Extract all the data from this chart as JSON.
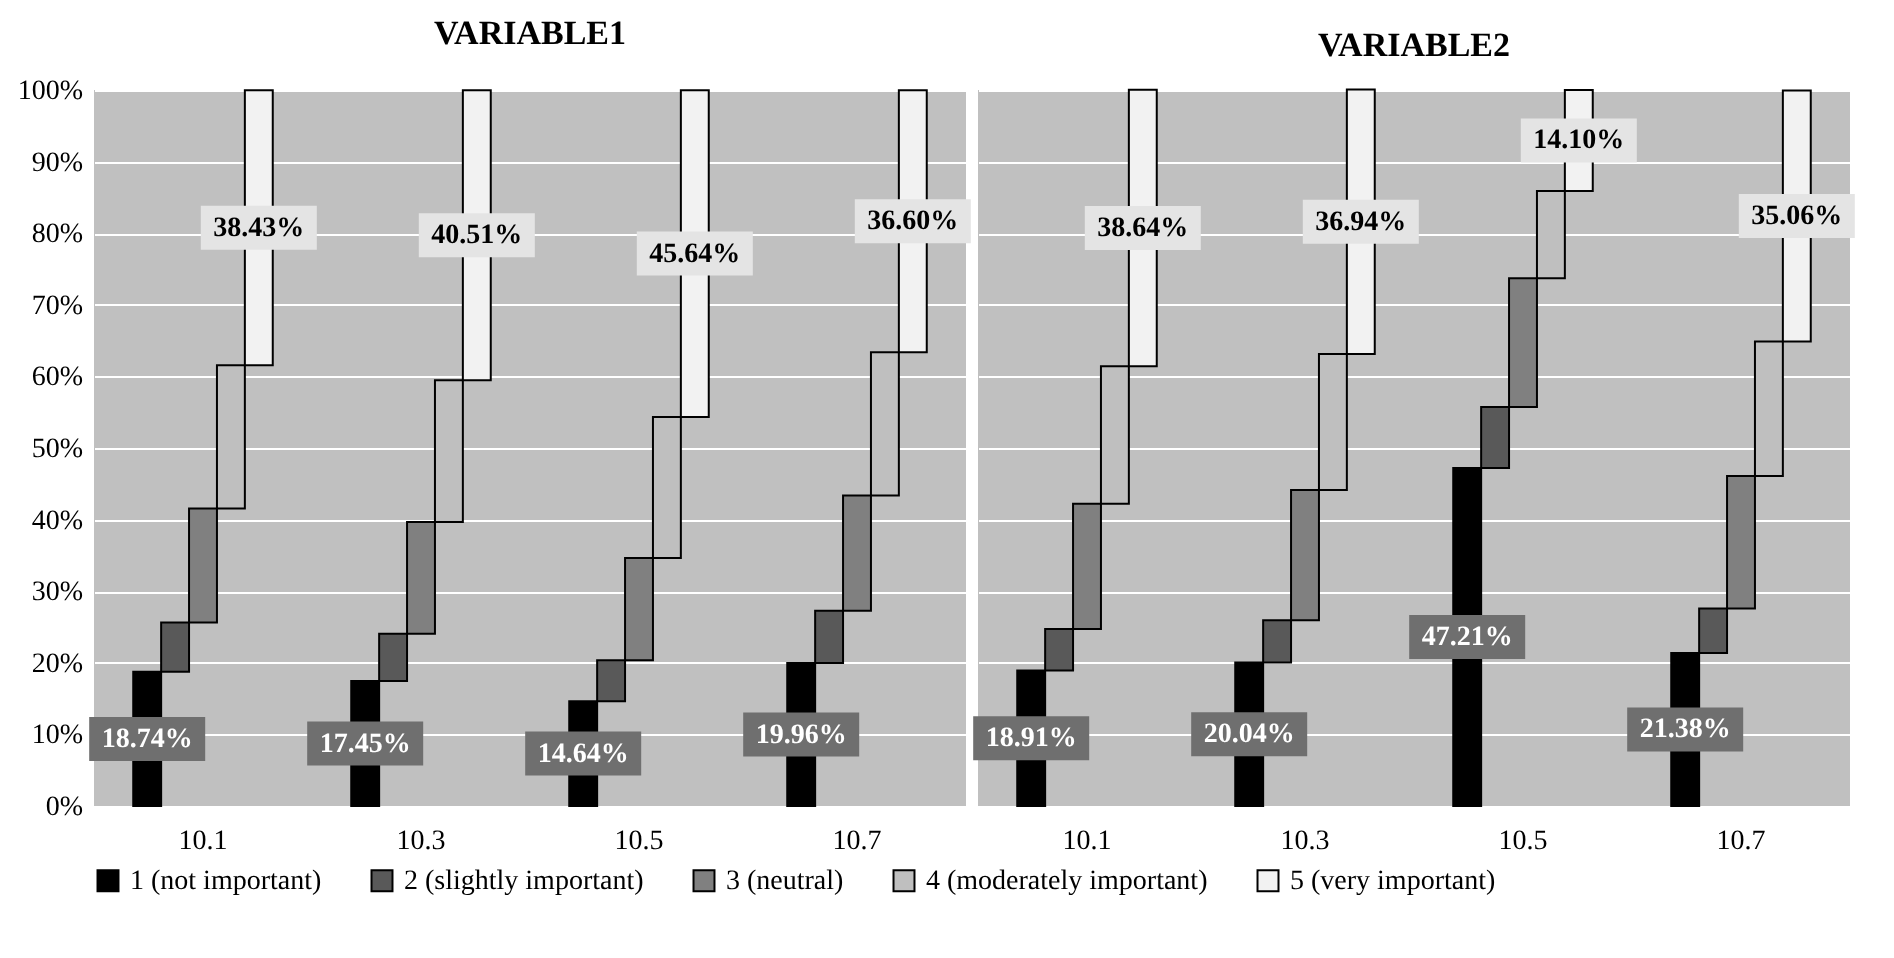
{
  "chart_data": [
    {
      "type": "bar",
      "title": "VARIABLE1",
      "stacked": true,
      "categories": [
        "10.1",
        "10.3",
        "10.5",
        "10.7"
      ],
      "series": [
        {
          "name": "1 (not important)",
          "color": "#000000",
          "values": [
            18.74,
            17.45,
            14.64,
            19.96
          ],
          "value_labels": [
            "18.74%",
            "17.45%",
            "14.64%",
            "19.96%"
          ]
        },
        {
          "name": "2 (slightly important)",
          "color": "#595959",
          "values": [
            6.9,
            6.6,
            5.7,
            7.3
          ]
        },
        {
          "name": "3 (neutral)",
          "color": "#808080",
          "values": [
            15.9,
            15.6,
            14.3,
            16.1
          ]
        },
        {
          "name": "4 (moderately important)",
          "color": "#bfbfbf",
          "values": [
            20.0,
            19.8,
            19.7,
            20.0
          ]
        },
        {
          "name": "5 (very important)",
          "color": "#f2f2f2",
          "values": [
            38.43,
            40.51,
            45.64,
            36.6
          ],
          "value_labels": [
            "38.43%",
            "40.51%",
            "45.64%",
            "36.60%"
          ]
        }
      ],
      "ylim": [
        0,
        100
      ],
      "yticks": [
        {
          "value": 0,
          "label": "0%"
        },
        {
          "value": 10,
          "label": "10%"
        },
        {
          "value": 20,
          "label": "20%"
        },
        {
          "value": 30,
          "label": "30%"
        },
        {
          "value": 40,
          "label": "40%"
        },
        {
          "value": 50,
          "label": "50%"
        },
        {
          "value": 60,
          "label": "60%"
        },
        {
          "value": 70,
          "label": "70%"
        },
        {
          "value": 80,
          "label": "80%"
        },
        {
          "value": 90,
          "label": "90%"
        },
        {
          "value": 100,
          "label": "100%"
        }
      ],
      "grid": "y",
      "legend": "bottom"
    },
    {
      "type": "bar",
      "title": "VARIABLE2",
      "stacked": true,
      "categories": [
        "10.1",
        "10.3",
        "10.5",
        "10.7"
      ],
      "series": [
        {
          "name": "1 (not important)",
          "color": "#000000",
          "values": [
            18.91,
            20.04,
            47.21,
            21.38
          ],
          "value_labels": [
            "18.91%",
            "20.04%",
            "47.21%",
            "21.38%"
          ]
        },
        {
          "name": "2 (slightly important)",
          "color": "#595959",
          "values": [
            5.8,
            5.9,
            8.5,
            6.2
          ]
        },
        {
          "name": "3 (neutral)",
          "color": "#808080",
          "values": [
            17.5,
            18.2,
            18.0,
            18.5
          ]
        },
        {
          "name": "4 (moderately important)",
          "color": "#bfbfbf",
          "values": [
            19.2,
            19.0,
            12.2,
            18.8
          ]
        },
        {
          "name": "5 (very important)",
          "color": "#f2f2f2",
          "values": [
            38.64,
            36.94,
            14.1,
            35.06
          ],
          "value_labels": [
            "38.64%",
            "36.94%",
            "14.10%",
            "35.06%"
          ]
        }
      ],
      "ylim": [
        0,
        100
      ],
      "yticks": [
        0,
        10,
        20,
        30,
        40,
        50,
        60,
        70,
        80,
        90,
        100
      ],
      "grid": "y",
      "legend": "bottom",
      "tick_labels": "x"
    }
  ]
}
